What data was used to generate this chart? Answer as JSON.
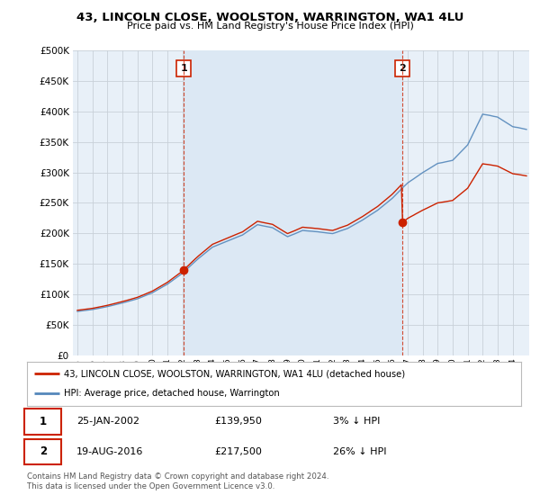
{
  "title": "43, LINCOLN CLOSE, WOOLSTON, WARRINGTON, WA1 4LU",
  "subtitle": "Price paid vs. HM Land Registry's House Price Index (HPI)",
  "legend_label_red": "43, LINCOLN CLOSE, WOOLSTON, WARRINGTON, WA1 4LU (detached house)",
  "legend_label_blue": "HPI: Average price, detached house, Warrington",
  "annotation1_label": "1",
  "annotation1_date": "25-JAN-2002",
  "annotation1_price": "£139,950",
  "annotation1_hpi": "3% ↓ HPI",
  "annotation2_label": "2",
  "annotation2_date": "19-AUG-2016",
  "annotation2_price": "£217,500",
  "annotation2_hpi": "26% ↓ HPI",
  "footer": "Contains HM Land Registry data © Crown copyright and database right 2024.\nThis data is licensed under the Open Government Licence v3.0.",
  "background_color": "#ffffff",
  "plot_bg_color": "#e8f0f8",
  "grid_color": "#c8d0d8",
  "red_color": "#cc2200",
  "blue_color": "#5588bb",
  "shade_color": "#dce8f4",
  "ylim": [
    0,
    500000
  ],
  "yticks": [
    0,
    50000,
    100000,
    150000,
    200000,
    250000,
    300000,
    350000,
    400000,
    450000,
    500000
  ],
  "purchase1_x": 2002.08,
  "purchase1_y": 139950,
  "purchase2_x": 2016.63,
  "purchase2_y": 217500,
  "vline1_x": 2002.08,
  "vline2_x": 2016.63,
  "xlim_start": 1994.7,
  "xlim_end": 2025.1
}
